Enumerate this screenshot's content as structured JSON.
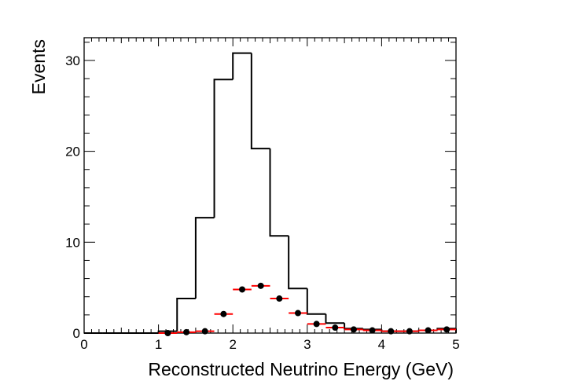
{
  "chart_data": {
    "type": "bar",
    "title": "",
    "xlabel": "Reconstructed Neutrino Energy (GeV)",
    "ylabel": "Events",
    "xlim": [
      0,
      5
    ],
    "ylim": [
      0,
      32.5
    ],
    "grid": false,
    "x_ticks": [
      "0",
      "1",
      "2",
      "3",
      "4",
      "5"
    ],
    "y_ticks": [
      "0",
      "10",
      "20",
      "30"
    ],
    "bin_width": 0.25,
    "bin_edges_start": [
      0,
      0.25,
      0.5,
      0.75,
      1.0,
      1.25,
      1.5,
      1.75,
      2.0,
      2.25,
      2.5,
      2.75,
      3.0,
      3.25,
      3.5,
      3.75,
      4.0,
      4.25,
      4.5,
      4.75
    ],
    "series": [
      {
        "style": "histogram",
        "color": "#000000",
        "values": [
          0,
          0,
          0,
          0,
          0.2,
          3.8,
          12.7,
          27.9,
          30.8,
          20.3,
          10.7,
          4.9,
          2.1,
          1.1,
          0.5,
          0.4,
          0.2,
          0.2,
          0.3,
          0.5
        ]
      },
      {
        "style": "points",
        "color": "#000000",
        "error_color": "#ff0000",
        "x": [
          1.125,
          1.375,
          1.625,
          1.875,
          2.125,
          2.375,
          2.625,
          2.875,
          3.125,
          3.375,
          3.625,
          3.875,
          4.125,
          4.375,
          4.625,
          4.875
        ],
        "values": [
          0.0,
          0.1,
          0.2,
          2.1,
          4.8,
          5.2,
          3.8,
          2.2,
          1.0,
          0.6,
          0.4,
          0.3,
          0.2,
          0.2,
          0.3,
          0.4
        ]
      }
    ]
  }
}
